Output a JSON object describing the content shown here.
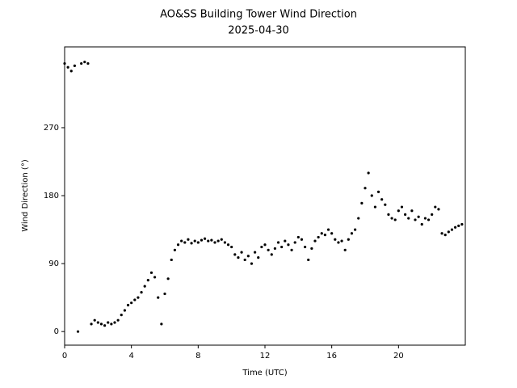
{
  "chart_data": {
    "type": "scatter",
    "title": "AO&SS Building Tower Wind Direction",
    "subtitle": "2025-04-30",
    "x_label": "Time (UTC)",
    "y_label": "Wind Direction (°)",
    "color": "#000000",
    "xlim": [
      0,
      24
    ],
    "xticks": [
      0,
      4,
      8,
      12,
      16,
      20
    ],
    "ylim": [
      -18,
      377
    ],
    "yticks": [
      0,
      90,
      180,
      270
    ],
    "x": [
      0.0,
      0.2,
      0.4,
      0.6,
      0.8,
      1.0,
      1.2,
      1.4,
      1.6,
      1.8,
      2.0,
      2.2,
      2.4,
      2.6,
      2.8,
      3.0,
      3.2,
      3.4,
      3.6,
      3.8,
      4.0,
      4.2,
      4.4,
      4.6,
      4.8,
      5.0,
      5.2,
      5.4,
      5.6,
      5.8,
      6.0,
      6.2,
      6.4,
      6.6,
      6.8,
      7.0,
      7.2,
      7.4,
      7.6,
      7.8,
      8.0,
      8.2,
      8.4,
      8.6,
      8.8,
      9.0,
      9.2,
      9.4,
      9.6,
      9.8,
      10.0,
      10.2,
      10.4,
      10.6,
      10.8,
      11.0,
      11.2,
      11.4,
      11.6,
      11.8,
      12.0,
      12.2,
      12.4,
      12.6,
      12.8,
      13.0,
      13.2,
      13.4,
      13.6,
      13.8,
      14.0,
      14.2,
      14.4,
      14.6,
      14.8,
      15.0,
      15.2,
      15.4,
      15.6,
      15.8,
      16.0,
      16.2,
      16.4,
      16.6,
      16.8,
      17.0,
      17.2,
      17.4,
      17.6,
      17.8,
      18.0,
      18.2,
      18.4,
      18.6,
      18.8,
      19.0,
      19.2,
      19.4,
      19.6,
      19.8,
      20.0,
      20.2,
      20.4,
      20.6,
      20.8,
      21.0,
      21.2,
      21.4,
      21.6,
      21.8,
      22.0,
      22.2,
      22.4,
      22.6,
      22.8,
      23.0,
      23.2,
      23.4,
      23.6,
      23.8
    ],
    "values": [
      355,
      350,
      345,
      352,
      0,
      355,
      357,
      355,
      10,
      15,
      12,
      10,
      8,
      12,
      10,
      12,
      15,
      22,
      28,
      35,
      38,
      42,
      45,
      52,
      60,
      68,
      78,
      72,
      45,
      10,
      50,
      70,
      95,
      108,
      115,
      120,
      118,
      122,
      117,
      120,
      118,
      121,
      123,
      120,
      121,
      118,
      120,
      122,
      118,
      115,
      112,
      102,
      98,
      105,
      95,
      100,
      90,
      105,
      98,
      112,
      115,
      108,
      102,
      110,
      118,
      112,
      120,
      115,
      108,
      118,
      125,
      122,
      112,
      95,
      110,
      120,
      125,
      130,
      128,
      135,
      130,
      122,
      118,
      120,
      108,
      122,
      130,
      135,
      150,
      170,
      190,
      210,
      180,
      165,
      185,
      175,
      168,
      155,
      150,
      148,
      160,
      165,
      155,
      150,
      160,
      148,
      152,
      142,
      150,
      148,
      155,
      165,
      162,
      130,
      128,
      132,
      135,
      138,
      140,
      142
    ]
  }
}
